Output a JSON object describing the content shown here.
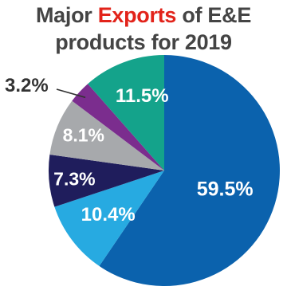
{
  "chart_data": {
    "type": "pie",
    "title_parts": [
      "Major ",
      "Exports",
      " of E&E"
    ],
    "title_line2": "products for 2019",
    "slices": [
      {
        "value": 59.5,
        "label": "59.5%",
        "color": "#0b62ad"
      },
      {
        "value": 10.4,
        "label": "10.4%",
        "color": "#27aae1"
      },
      {
        "value": 7.3,
        "label": "7.3%",
        "color": "#1f1d5c"
      },
      {
        "value": 8.1,
        "label": "8.1%",
        "color": "#a7a9ac"
      },
      {
        "value": 3.2,
        "label": "3.2%",
        "color": "#7b2d8e"
      },
      {
        "value": 11.5,
        "label": "11.5%",
        "color": "#14a38b"
      }
    ],
    "start": "12 o'clock",
    "direction": "clockwise",
    "legend": "none"
  }
}
